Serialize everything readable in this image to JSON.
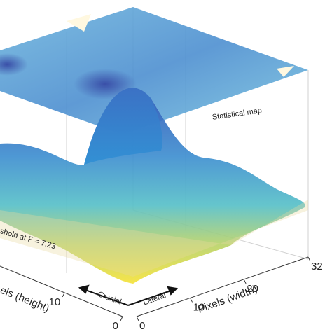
{
  "chart_data": {
    "type": "surface",
    "annotations": [
      "Statistical map",
      "shold at F = 7.23",
      "Cranial",
      "Lateral"
    ],
    "xlabel": "Pixels (width)",
    "ylabel": "els (height)",
    "xlim": [
      0,
      32
    ],
    "xticks": [
      0,
      10,
      20,
      32
    ],
    "ylim": [
      0,
      32
    ],
    "yticks": [
      0,
      10
    ]
  }
}
